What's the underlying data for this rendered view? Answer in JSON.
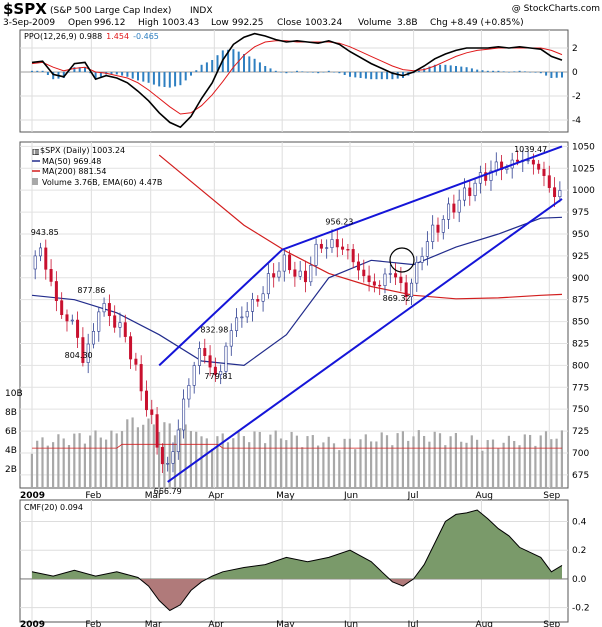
{
  "header": {
    "symbol": "$SPX",
    "full_name": "(S&P 500 Large Cap Index)",
    "exchange": "INDX",
    "source": "@ StockCharts.com",
    "date": "3-Sep-2009",
    "open_label": "Open",
    "open": "996.12",
    "high_label": "High",
    "high": "1003.43",
    "low_label": "Low",
    "low": "992.25",
    "close_label": "Close",
    "close": "1003.24",
    "volume_label": "Volume",
    "volume": "3.8B",
    "chg_label": "Chg",
    "chg": "+8.49 (+0.85%)"
  },
  "ppo": {
    "label_prefix": "PPO(12,26,9) ",
    "value": "0.988",
    "signal": "1.454",
    "hist": "-0.465",
    "colors": {
      "ppo": "#000000",
      "signal": "#e0191b",
      "hist": "#2e7fc1"
    }
  },
  "main": {
    "legend": {
      "price": "$SPX (Daily) 1003.24",
      "ma50": "MA(50) 969.48",
      "ma200": "MA(200) 881.54",
      "volume": "Volume 3.76B, EMA(60) 4.47B"
    },
    "colors": {
      "up": "#2a3b8f",
      "down": "#c8102e",
      "ma50": "#222c8c",
      "ma200": "#d21e1e",
      "trend": "#1515d8",
      "volume": "#a8a8a8"
    }
  },
  "cmf": {
    "label": "CMF(20) 0.094",
    "colors": {
      "pos": "#7a9a6a",
      "neg": "#b07a7a"
    }
  },
  "chart_data": [
    {
      "type": "line",
      "title": "PPO(12,26,9)",
      "x_months": [
        "2009",
        "Feb",
        "Mar",
        "Apr",
        "May",
        "Jun",
        "Jul",
        "Aug",
        "Sep"
      ],
      "ylim": [
        -5,
        3.5
      ],
      "yticks": [
        2,
        0,
        -2,
        -4
      ],
      "series": [
        {
          "name": "PPO",
          "x": [
            0,
            5,
            10,
            15,
            20,
            25,
            30,
            35,
            40,
            45,
            50,
            55,
            60,
            65,
            70,
            75,
            80,
            85,
            90,
            95,
            100,
            105,
            110,
            115,
            120,
            125,
            130,
            135,
            140,
            145,
            150,
            155,
            160,
            165,
            170,
            175,
            180,
            185,
            190,
            195,
            200,
            205,
            210,
            215,
            220,
            225,
            230,
            235,
            240,
            245,
            250
          ],
          "y": [
            0.8,
            0.9,
            -0.2,
            -0.4,
            0.7,
            0.8,
            -0.6,
            -0.3,
            -0.5,
            -0.9,
            -1.6,
            -2.4,
            -3.4,
            -4.2,
            -4.6,
            -3.7,
            -2.2,
            -0.9,
            1.0,
            2.3,
            2.9,
            3.2,
            3.0,
            2.7,
            2.5,
            2.6,
            2.5,
            2.4,
            2.6,
            2.3,
            1.7,
            1.2,
            0.7,
            0.3,
            -0.1,
            -0.3,
            0.0,
            0.5,
            1.1,
            1.5,
            1.8,
            2.0,
            2.0,
            2.0,
            2.1,
            2.0,
            2.1,
            2.0,
            1.9,
            1.3,
            0.99
          ]
        },
        {
          "name": "Signal",
          "x": [
            0,
            5,
            10,
            15,
            20,
            25,
            30,
            35,
            40,
            45,
            50,
            55,
            60,
            65,
            70,
            75,
            80,
            85,
            90,
            95,
            100,
            105,
            110,
            115,
            120,
            125,
            130,
            135,
            140,
            145,
            150,
            155,
            160,
            165,
            170,
            175,
            180,
            185,
            190,
            195,
            200,
            205,
            210,
            215,
            220,
            225,
            230,
            235,
            240,
            245,
            250
          ],
          "y": [
            0.7,
            0.8,
            0.4,
            0.1,
            0.3,
            0.4,
            0.0,
            -0.1,
            -0.3,
            -0.5,
            -0.9,
            -1.5,
            -2.2,
            -2.9,
            -3.5,
            -3.4,
            -2.8,
            -1.9,
            -0.8,
            0.4,
            1.4,
            2.1,
            2.5,
            2.6,
            2.6,
            2.5,
            2.5,
            2.5,
            2.5,
            2.4,
            2.1,
            1.7,
            1.3,
            0.9,
            0.5,
            0.2,
            0.1,
            0.2,
            0.5,
            0.9,
            1.3,
            1.6,
            1.8,
            1.9,
            2.0,
            2.0,
            2.0,
            2.0,
            2.0,
            1.8,
            1.45
          ]
        }
      ]
    },
    {
      "type": "candlestick",
      "title": "$SPX (Daily) 1003.24",
      "x_months": [
        "2009",
        "Feb",
        "Mar",
        "Apr",
        "May",
        "Jun",
        "Jul",
        "Aug",
        "Sep"
      ],
      "ylim": [
        660,
        1055
      ],
      "yticks": [
        675,
        700,
        725,
        750,
        775,
        800,
        825,
        850,
        875,
        900,
        925,
        950,
        975,
        1000,
        1025,
        1050
      ],
      "volume_ticks": [
        "2B",
        "4B",
        "6B",
        "8B",
        "10B"
      ],
      "close_x": [
        0,
        4,
        8,
        12,
        16,
        20,
        24,
        28,
        32,
        36,
        40,
        44,
        48,
        52,
        56,
        60,
        64,
        68,
        72,
        76,
        80,
        84,
        88,
        92,
        96,
        100,
        104,
        108,
        112,
        116,
        120,
        124,
        128,
        132,
        136,
        140,
        144,
        148,
        152,
        156,
        160,
        164,
        168,
        172,
        176,
        180,
        184,
        188,
        192,
        196,
        200,
        204,
        208,
        212,
        216,
        220,
        224,
        228,
        232,
        236,
        240,
        244,
        248,
        250
      ],
      "close_y": [
        910,
        935,
        900,
        870,
        850,
        850,
        805,
        830,
        870,
        860,
        845,
        835,
        800,
        770,
        740,
        700,
        680,
        720,
        760,
        800,
        820,
        800,
        780,
        830,
        850,
        860,
        870,
        880,
        900,
        910,
        920,
        905,
        895,
        920,
        940,
        935,
        940,
        930,
        920,
        900,
        895,
        890,
        910,
        900,
        880,
        900,
        930,
        950,
        960,
        975,
        985,
        995,
        1005,
        1015,
        1020,
        1030,
        1025,
        1035,
        1035,
        1030,
        1025,
        1000,
        995,
        1003
      ],
      "ma50": {
        "x": [
          0,
          20,
          40,
          60,
          80,
          100,
          120,
          140,
          160,
          180,
          200,
          220,
          240,
          250
        ],
        "y": [
          880,
          875,
          860,
          835,
          805,
          800,
          835,
          900,
          920,
          915,
          935,
          950,
          968,
          969
        ]
      },
      "ma200": {
        "x": [
          60,
          80,
          100,
          120,
          140,
          160,
          180,
          200,
          220,
          240,
          250
        ],
        "y": [
          1040,
          1000,
          960,
          930,
          905,
          890,
          880,
          876,
          877,
          880,
          881
        ]
      },
      "annotations": [
        {
          "label": "943.85",
          "x": 6,
          "y": 944
        },
        {
          "label": "877.86",
          "x": 28,
          "y": 878
        },
        {
          "label": "804.30",
          "x": 22,
          "y": 804
        },
        {
          "label": "666.79",
          "x": 64,
          "y": 667
        },
        {
          "label": "832.98",
          "x": 86,
          "y": 833
        },
        {
          "label": "779.81",
          "x": 88,
          "y": 780
        },
        {
          "label": "956.23",
          "x": 145,
          "y": 956
        },
        {
          "label": "869.32",
          "x": 172,
          "y": 869
        },
        {
          "label": "1039.47",
          "x": 234,
          "y": 1039
        }
      ],
      "trendlines": [
        {
          "name": "upper-channel",
          "x": [
            60,
            118,
            250
          ],
          "y": [
            800,
            932,
            1050
          ]
        },
        {
          "name": "lower-channel",
          "x": [
            64,
            250
          ],
          "y": [
            667,
            990
          ]
        }
      ]
    },
    {
      "type": "area",
      "title": "CMF(20) 0.094",
      "x_months": [
        "2009",
        "Feb",
        "Mar",
        "Apr",
        "May",
        "Jun",
        "Jul",
        "Aug",
        "Sep"
      ],
      "ylim": [
        -0.3,
        0.55
      ],
      "yticks": [
        0.4,
        0.2,
        0.0,
        -0.2
      ],
      "x": [
        0,
        10,
        20,
        30,
        40,
        50,
        55,
        60,
        65,
        70,
        75,
        80,
        85,
        90,
        100,
        110,
        120,
        130,
        140,
        150,
        160,
        165,
        170,
        175,
        180,
        185,
        190,
        195,
        200,
        205,
        210,
        215,
        220,
        225,
        230,
        240,
        245,
        250
      ],
      "values": [
        0.05,
        0.02,
        0.06,
        0.02,
        0.05,
        0.01,
        -0.05,
        -0.15,
        -0.22,
        -0.18,
        -0.08,
        -0.02,
        0.02,
        0.05,
        0.08,
        0.1,
        0.15,
        0.12,
        0.15,
        0.2,
        0.12,
        0.05,
        -0.02,
        -0.05,
        0.0,
        0.1,
        0.25,
        0.4,
        0.45,
        0.46,
        0.48,
        0.42,
        0.35,
        0.3,
        0.22,
        0.15,
        0.05,
        0.094
      ]
    }
  ]
}
